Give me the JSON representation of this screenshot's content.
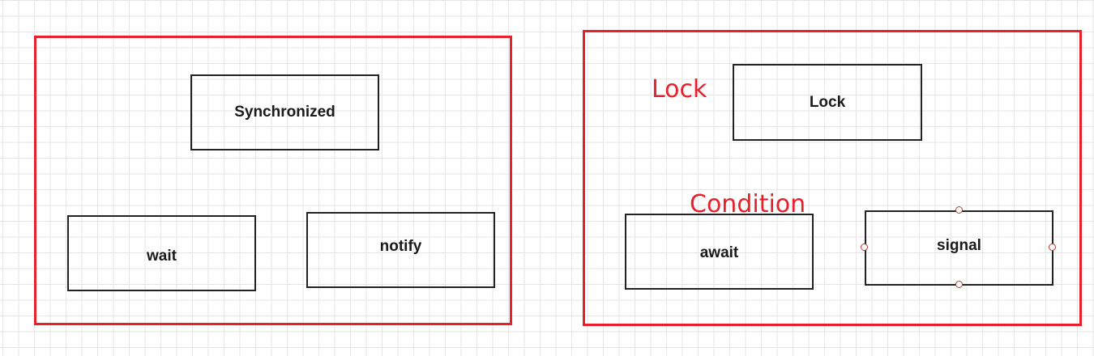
{
  "groups": {
    "left": {
      "nodes": {
        "synchronized": "Synchronized",
        "wait": "wait",
        "notify": "notify"
      }
    },
    "right": {
      "annotations": {
        "lock": "Lock",
        "condition": "Condition"
      },
      "nodes": {
        "lock": "Lock",
        "await": "await",
        "signal": "signal"
      }
    }
  },
  "colors": {
    "frame_border": "#e8202a",
    "annotation_text": "#e8202a",
    "node_border": "#222222",
    "grid_line": "#e6e6e6",
    "selection_handle": "#c0392b"
  },
  "selected_node": "signal"
}
